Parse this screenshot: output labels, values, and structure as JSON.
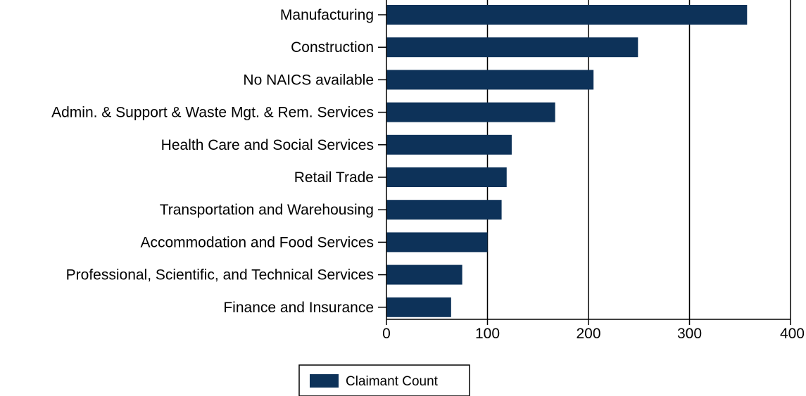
{
  "chart_data": {
    "type": "bar",
    "orientation": "horizontal",
    "categories": [
      "Manufacturing",
      "Construction",
      "No NAICS available",
      "Admin. & Support & Waste Mgt. & Rem. Services",
      "Health Care and Social Services",
      "Retail Trade",
      "Transportation and Warehousing",
      "Accommodation and Food Services",
      "Professional, Scientific, and Technical Services",
      "Finance and Insurance"
    ],
    "series": [
      {
        "name": "Claimant Count",
        "values": [
          357,
          249,
          205,
          167,
          124,
          119,
          114,
          100,
          75,
          64
        ]
      }
    ],
    "xlim": [
      0,
      400
    ],
    "xticks": [
      0,
      100,
      200,
      300,
      400
    ],
    "xtick_labels": [
      "0",
      "100",
      "200",
      "300",
      "400"
    ],
    "grid": "vertical",
    "legend": {
      "position": "bottom-center",
      "entries": [
        "Claimant Count"
      ]
    },
    "title": "",
    "xlabel": "",
    "ylabel": ""
  },
  "colors": {
    "bar": "#0d3259",
    "grid": "#000000",
    "axis": "#000000"
  }
}
